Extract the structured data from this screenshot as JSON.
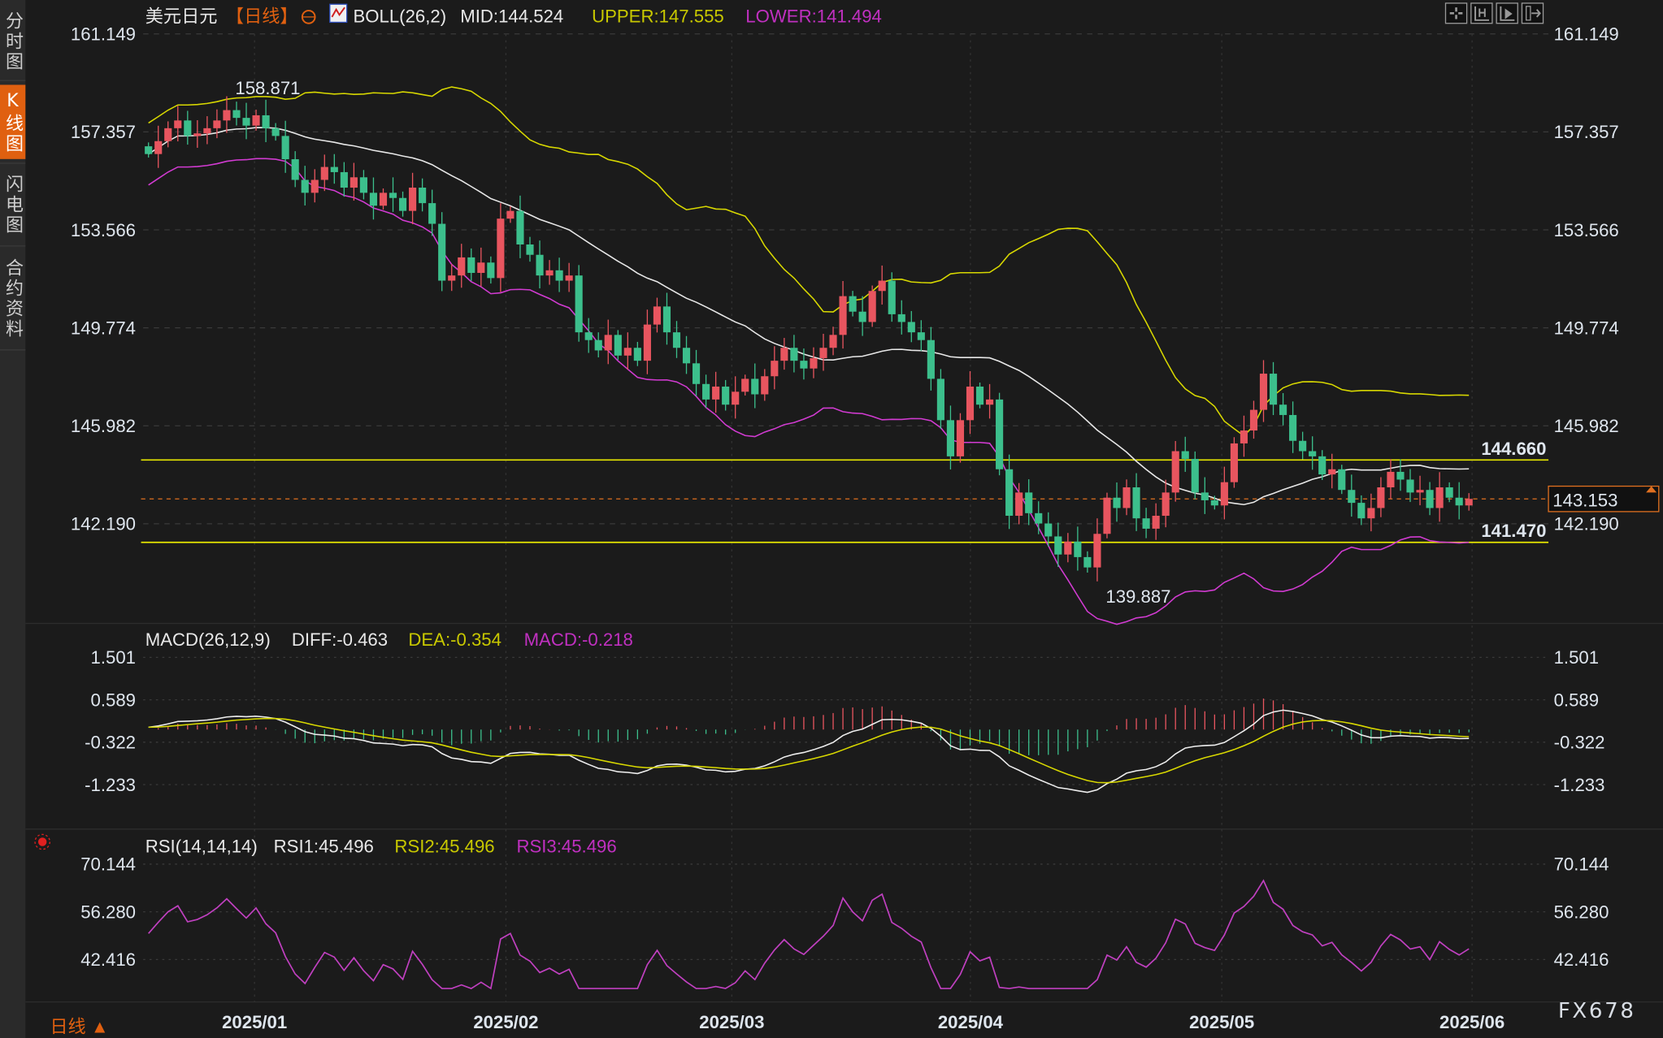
{
  "sidebar": {
    "tabs": [
      {
        "label": "分时图",
        "active": false
      },
      {
        "label": "K线图",
        "active": true
      },
      {
        "label": "闪电图",
        "active": false
      },
      {
        "label": "合约资料",
        "active": false
      }
    ]
  },
  "header": {
    "symbol": "美元日元",
    "period": "【日线】",
    "boll_label": "BOLL(26,2)",
    "mid": "MID:144.524",
    "upper": "UPPER:147.555",
    "lower": "LOWER:141.494"
  },
  "toolbar": {
    "icons": [
      "crosshair-icon",
      "zoom-range-icon",
      "play-range-icon",
      "move-right-icon"
    ]
  },
  "colors": {
    "up": "#e8555f",
    "down": "#3cbf8c",
    "upper": "#d8d800",
    "mid": "#e8e8e8",
    "lower": "#d23bd2",
    "accent": "#e06010",
    "dea": "#d8d800",
    "macd": "#c040c0"
  },
  "price_axis": {
    "ticks": [
      "161.149",
      "157.357",
      "153.566",
      "149.774",
      "145.982",
      "142.190"
    ]
  },
  "levels": {
    "resistance": "144.660",
    "support": "141.470",
    "current": "143.153",
    "high": "158.871",
    "low": "139.887"
  },
  "macd": {
    "label": "MACD(26,12,9)",
    "diff": "DIFF:-0.463",
    "dea": "DEA:-0.354",
    "macd": "MACD:-0.218",
    "ticks": [
      "1.501",
      "0.589",
      "-0.322",
      "-1.233"
    ]
  },
  "rsi": {
    "label": "RSI(14,14,14)",
    "rsi1": "RSI1:45.496",
    "rsi2": "RSI2:45.496",
    "rsi3": "RSI3:45.496",
    "ticks": [
      "70.144",
      "56.280",
      "42.416"
    ]
  },
  "xaxis": {
    "months": [
      "2025/01",
      "2025/02",
      "2025/03",
      "2025/04",
      "2025/05",
      "2025/06"
    ]
  },
  "period_selector": "日线 ▲",
  "watermark": "FX678",
  "chart_data": {
    "type": "candlestick",
    "title": "美元日元【日线】",
    "price_ylim": [
      142.19,
      161.149
    ],
    "x_tick_labels": [
      "2025/01",
      "2025/02",
      "2025/03",
      "2025/04",
      "2025/05",
      "2025/06"
    ],
    "closes": [
      156.5,
      157.0,
      157.5,
      157.8,
      157.2,
      157.3,
      157.5,
      157.8,
      158.2,
      157.9,
      157.6,
      158.0,
      157.5,
      157.2,
      156.3,
      155.5,
      155.0,
      155.5,
      156.0,
      155.8,
      155.2,
      155.6,
      155.0,
      154.5,
      155.0,
      154.8,
      154.3,
      155.2,
      154.6,
      153.8,
      151.6,
      151.8,
      152.5,
      151.9,
      152.3,
      151.7,
      154.0,
      154.3,
      153.0,
      152.6,
      151.8,
      152.0,
      151.6,
      151.8,
      149.6,
      149.3,
      148.9,
      149.5,
      148.7,
      149.0,
      148.5,
      149.9,
      150.6,
      149.6,
      149.0,
      148.4,
      147.6,
      147.0,
      147.5,
      146.8,
      147.3,
      147.8,
      147.2,
      147.9,
      148.5,
      149.0,
      148.5,
      148.2,
      148.6,
      149.0,
      149.5,
      151.0,
      150.4,
      150.0,
      151.2,
      151.6,
      150.3,
      150.0,
      149.6,
      149.3,
      147.8,
      146.2,
      144.8,
      146.2,
      147.5,
      146.8,
      147.0,
      144.3,
      142.5,
      143.4,
      142.6,
      142.2,
      141.7,
      141.0,
      141.5,
      140.9,
      140.5,
      141.8,
      143.2,
      142.8,
      143.6,
      142.4,
      142.0,
      142.5,
      143.4,
      145.0,
      144.7,
      143.4,
      143.1,
      142.9,
      143.8,
      145.3,
      145.8,
      146.6,
      148.0,
      146.8,
      146.4,
      145.4,
      145.0,
      144.8,
      144.1,
      144.3,
      143.5,
      143.0,
      142.4,
      142.8,
      143.6,
      144.2,
      143.9,
      143.4,
      143.5,
      142.8,
      143.6,
      143.2,
      142.9,
      143.153
    ],
    "indicators": {
      "boll": {
        "period": 26,
        "k": 2,
        "mid": 144.524,
        "upper": 147.555,
        "lower": 141.494
      },
      "macd": {
        "params": [
          26,
          12,
          9
        ],
        "diff": -0.463,
        "dea": -0.354,
        "macd": -0.218,
        "ylim": [
          -1.233,
          1.501
        ]
      },
      "rsi": {
        "params": [
          14,
          14,
          14
        ],
        "rsi1": 45.496,
        "rsi2": 45.496,
        "rsi3": 45.496,
        "ylim": [
          42.416,
          70.144
        ]
      }
    },
    "horizontal_lines": [
      144.66,
      141.47
    ],
    "current_price": 143.153,
    "annotations": [
      {
        "text": "158.871",
        "type": "high"
      },
      {
        "text": "139.887",
        "type": "low"
      }
    ],
    "grid": true
  }
}
